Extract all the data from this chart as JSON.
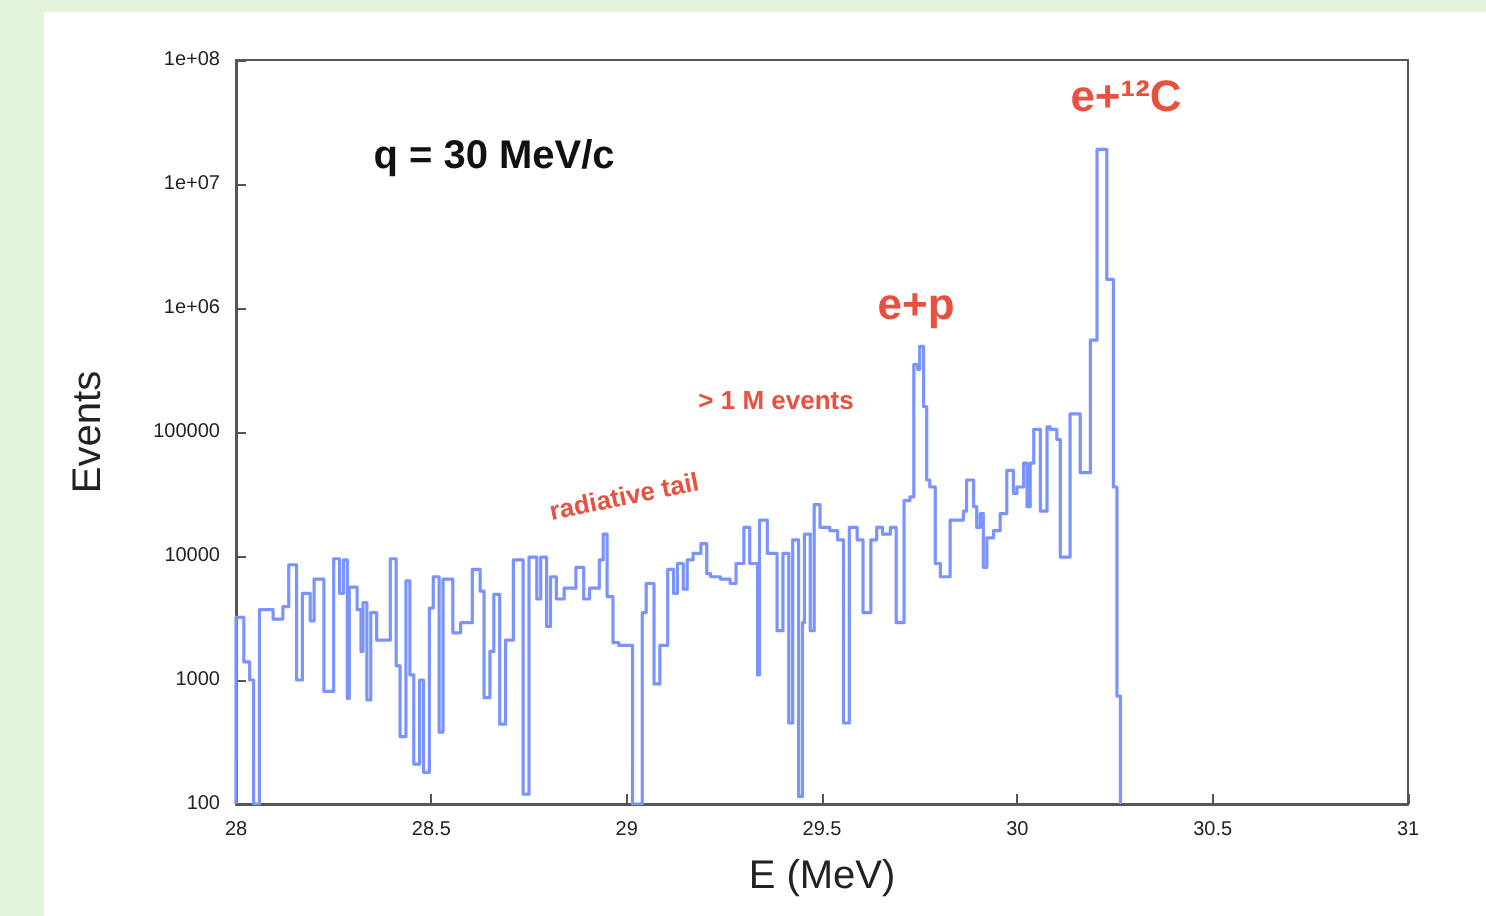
{
  "chart_data": {
    "type": "histogram",
    "xlabel": "E (MeV)",
    "ylabel": "Events",
    "color": "#7b93ff",
    "log": "y",
    "xlim": [
      28,
      31
    ],
    "xticks": [
      28,
      28.5,
      29,
      29.5,
      30,
      30.5,
      31
    ],
    "ylim": [
      100,
      100000000
    ],
    "yticks": [
      100,
      1000,
      10000,
      100000,
      {
        "value": 1000000,
        "label": "1e+06"
      },
      {
        "value": 10000000,
        "label": "1e+07"
      },
      {
        "value": 100000000,
        "label": "1e+08"
      }
    ],
    "annotations": [
      "q = 30 MeV/c",
      "e+p",
      "e+¹²C",
      "> 1 M events",
      "radiative tail"
    ],
    "bins": [
      28.0,
      28.02,
      28.035,
      28.045,
      28.06,
      28.095,
      28.12,
      28.135,
      28.155,
      28.17,
      28.19,
      28.2,
      28.225,
      28.25,
      28.265,
      28.275,
      28.285,
      28.29,
      28.31,
      28.32,
      28.325,
      28.335,
      28.345,
      28.36,
      28.395,
      28.41,
      28.42,
      28.435,
      28.445,
      28.455,
      28.47,
      28.48,
      28.495,
      28.505,
      28.52,
      28.53,
      28.555,
      28.575,
      28.605,
      28.625,
      28.635,
      28.65,
      28.66,
      28.675,
      28.69,
      28.71,
      28.735,
      28.75,
      28.77,
      28.78,
      28.795,
      28.805,
      28.82,
      28.84,
      28.87,
      28.89,
      28.905,
      28.93,
      28.94,
      28.95,
      28.965,
      28.98,
      29.0,
      29.015,
      29.04,
      29.05,
      29.07,
      29.085,
      29.105,
      29.12,
      29.13,
      29.145,
      29.155,
      29.17,
      29.19,
      29.205,
      29.215,
      29.24,
      29.265,
      29.28,
      29.3,
      29.315,
      29.335,
      29.34,
      29.36,
      29.385,
      29.4,
      29.415,
      29.425,
      29.44,
      29.45,
      29.455,
      29.47,
      29.48,
      29.495,
      29.52,
      29.54,
      29.555,
      29.57,
      29.59,
      29.605,
      29.625,
      29.64,
      29.655,
      29.675,
      29.69,
      29.71,
      29.725,
      29.735,
      29.745,
      29.75,
      29.76,
      29.768,
      29.776,
      29.79,
      29.803,
      29.828,
      29.862,
      29.87,
      29.888,
      29.896,
      29.905,
      29.913,
      29.922,
      29.939,
      29.956,
      29.973,
      29.99,
      29.999,
      30.016,
      30.025,
      30.033,
      30.042,
      30.059,
      30.076,
      30.084,
      30.101,
      30.11,
      30.135,
      30.161,
      30.187,
      30.204,
      30.229,
      30.246,
      30.255,
      30.264
    ],
    "values": [
      3200,
      1400,
      1000,
      100,
      3700,
      3100,
      3900,
      8500,
      1000,
      5000,
      3000,
      6500,
      810,
      9500,
      5000,
      9300,
      710,
      5600,
      3700,
      1700,
      4200,
      690,
      3500,
      2100,
      9500,
      1300,
      350,
      6300,
      1100,
      210,
      1000,
      180,
      3800,
      6800,
      380,
      6500,
      2400,
      2900,
      7800,
      5200,
      720,
      1700,
      4900,
      440,
      2100,
      9300,
      120,
      9800,
      4500,
      9800,
      2700,
      6800,
      4500,
      5500,
      8100,
      4500,
      5500,
      9300,
      15000,
      4700,
      2000,
      1900,
      1900,
      100,
      3500,
      6000,
      930,
      1900,
      7800,
      5000,
      8700,
      5400,
      9300,
      10500,
      12600,
      7200,
      6800,
      6500,
      6000,
      8700,
      17000,
      8700,
      1100,
      19500,
      10500,
      2500,
      10500,
      450,
      13500,
      115,
      2900,
      15000,
      2500,
      26000,
      17000,
      16000,
      13500,
      450,
      17000,
      13500,
      3500,
      13500,
      17000,
      15000,
      17000,
      2900,
      28000,
      30000,
      350000,
      320000,
      490000,
      160000,
      41000,
      36000,
      8700,
      6800,
      19500,
      23000,
      41000,
      25000,
      17000,
      22000,
      8100,
      14000,
      16000,
      22000,
      49000,
      32000,
      36000,
      56000,
      25000,
      56000,
      105000,
      23000,
      110000,
      105000,
      87000,
      9800,
      140000,
      47000,
      550000,
      19000000,
      1700000,
      36000,
      740
    ]
  }
}
